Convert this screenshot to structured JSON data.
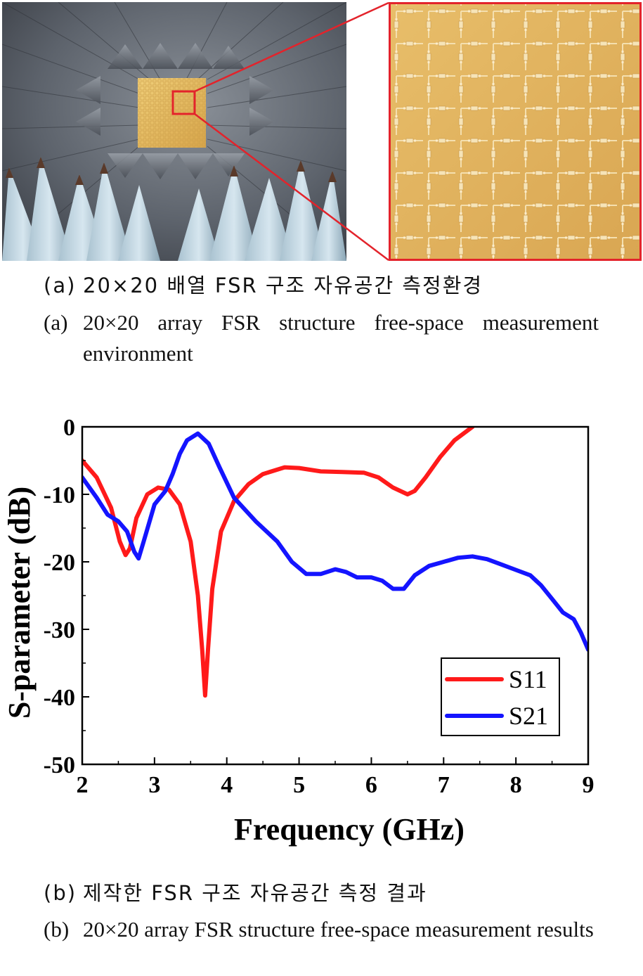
{
  "figure_a": {
    "photo": {
      "subject": "anechoic chamber with FSR panel"
    },
    "zoom": {
      "subject": "FSR unit-cell array close-up"
    },
    "caption_tag_ko": "(a)",
    "caption_ko": "20×20 배열 FSR 구조 자유공간 측정환경",
    "caption_tag_en": "(a)",
    "caption_en": "20×20 array FSR structure free-space measurement environment"
  },
  "figure_b": {
    "caption_tag_ko": "(b)",
    "caption_ko": "제작한 FSR 구조 자유공간 측정 결과",
    "caption_tag_en": "(b)",
    "caption_en": "20×20 array FSR structure free-space measurement results"
  },
  "colors": {
    "s11": "#ff1a1a",
    "s21": "#1414ff",
    "highlight": "#e3232b",
    "panel": "#e4b860"
  },
  "chart_data": {
    "type": "line",
    "title": "",
    "xlabel": "Frequency (GHz)",
    "ylabel": "S-parameter (dB)",
    "xlim": [
      2,
      9
    ],
    "ylim": [
      -50,
      0
    ],
    "xticks": [
      2,
      3,
      4,
      5,
      6,
      7,
      8,
      9
    ],
    "yticks": [
      0,
      -10,
      -20,
      -30,
      -40,
      -50
    ],
    "xtick_labels": [
      "2",
      "3",
      "4",
      "5",
      "6",
      "7",
      "8",
      "9"
    ],
    "ytick_labels": [
      "0",
      "-10",
      "-20",
      "-30",
      "-40",
      "-50"
    ],
    "legend_position": "bottom-right",
    "series": [
      {
        "name": "S11",
        "color": "#ff1a1a",
        "points": [
          [
            2.0,
            -5
          ],
          [
            2.2,
            -7.5
          ],
          [
            2.4,
            -12
          ],
          [
            2.52,
            -17
          ],
          [
            2.6,
            -19
          ],
          [
            2.66,
            -18
          ],
          [
            2.75,
            -13.5
          ],
          [
            2.9,
            -10
          ],
          [
            3.05,
            -9
          ],
          [
            3.2,
            -9.3
          ],
          [
            3.35,
            -11.5
          ],
          [
            3.5,
            -17
          ],
          [
            3.6,
            -25
          ],
          [
            3.66,
            -33
          ],
          [
            3.7,
            -39.8
          ],
          [
            3.74,
            -33
          ],
          [
            3.8,
            -24
          ],
          [
            3.92,
            -15.5
          ],
          [
            4.1,
            -11
          ],
          [
            4.3,
            -8.5
          ],
          [
            4.5,
            -7
          ],
          [
            4.8,
            -6
          ],
          [
            5.0,
            -6.1
          ],
          [
            5.3,
            -6.6
          ],
          [
            5.6,
            -6.7
          ],
          [
            5.9,
            -6.8
          ],
          [
            6.1,
            -7.5
          ],
          [
            6.3,
            -9
          ],
          [
            6.5,
            -10
          ],
          [
            6.6,
            -9.5
          ],
          [
            6.75,
            -7.5
          ],
          [
            6.95,
            -4.5
          ],
          [
            7.15,
            -2
          ],
          [
            7.4,
            0
          ]
        ]
      },
      {
        "name": "S21",
        "color": "#1414ff",
        "points": [
          [
            2.0,
            -7.5
          ],
          [
            2.2,
            -10.5
          ],
          [
            2.35,
            -13
          ],
          [
            2.5,
            -14
          ],
          [
            2.62,
            -15.5
          ],
          [
            2.72,
            -18.5
          ],
          [
            2.78,
            -19.5
          ],
          [
            2.85,
            -17
          ],
          [
            3.0,
            -11.5
          ],
          [
            3.15,
            -9.5
          ],
          [
            3.25,
            -7
          ],
          [
            3.35,
            -4
          ],
          [
            3.45,
            -2
          ],
          [
            3.6,
            -1
          ],
          [
            3.75,
            -2.5
          ],
          [
            3.9,
            -6
          ],
          [
            4.1,
            -10.5
          ],
          [
            4.4,
            -14
          ],
          [
            4.7,
            -17
          ],
          [
            4.9,
            -20
          ],
          [
            5.1,
            -21.8
          ],
          [
            5.3,
            -21.8
          ],
          [
            5.5,
            -21.1
          ],
          [
            5.65,
            -21.5
          ],
          [
            5.8,
            -22.3
          ],
          [
            6.0,
            -22.3
          ],
          [
            6.15,
            -22.8
          ],
          [
            6.3,
            -24
          ],
          [
            6.45,
            -24
          ],
          [
            6.6,
            -22
          ],
          [
            6.8,
            -20.6
          ],
          [
            7.0,
            -20
          ],
          [
            7.2,
            -19.4
          ],
          [
            7.4,
            -19.2
          ],
          [
            7.6,
            -19.6
          ],
          [
            7.8,
            -20.4
          ],
          [
            8.0,
            -21.2
          ],
          [
            8.2,
            -22
          ],
          [
            8.35,
            -23.5
          ],
          [
            8.5,
            -25.5
          ],
          [
            8.65,
            -27.5
          ],
          [
            8.8,
            -28.5
          ],
          [
            8.9,
            -30.5
          ],
          [
            9.0,
            -33
          ]
        ]
      }
    ]
  }
}
